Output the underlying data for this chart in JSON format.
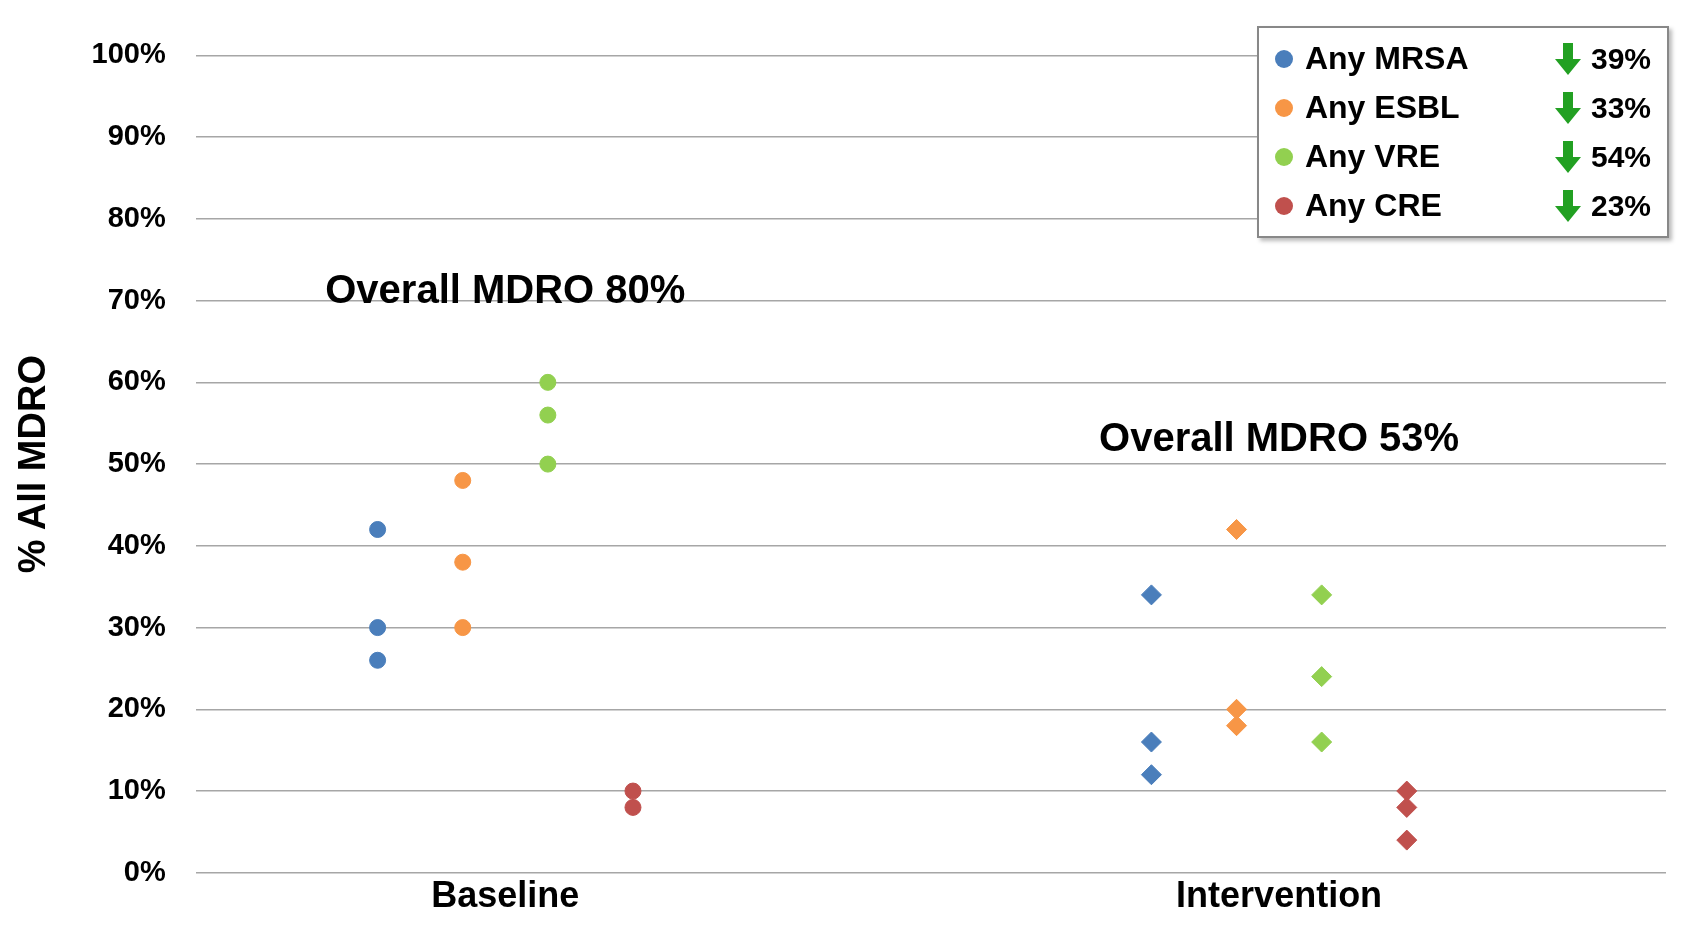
{
  "chart_data": {
    "type": "scatter",
    "ylabel": "% All MDRO",
    "categories": [
      "Baseline",
      "Intervention"
    ],
    "ylim": [
      0,
      100
    ],
    "yticks": [
      {
        "value": 0,
        "label": "0%"
      },
      {
        "value": 10,
        "label": "10%"
      },
      {
        "value": 20,
        "label": "20%"
      },
      {
        "value": 30,
        "label": "30%"
      },
      {
        "value": 40,
        "label": "40%"
      },
      {
        "value": 50,
        "label": "50%"
      },
      {
        "value": 60,
        "label": "60%"
      },
      {
        "value": 70,
        "label": "70%"
      },
      {
        "value": 80,
        "label": "80%"
      },
      {
        "value": 90,
        "label": "90%"
      },
      {
        "value": 100,
        "label": "100%"
      }
    ],
    "grid": "y",
    "legend": "top right",
    "marker": "circle",
    "series": [
      {
        "name": "Any MRSA",
        "color": "#4a7ebb",
        "x": [
          "Baseline",
          "Baseline",
          "Baseline"
        ],
        "values": [
          42,
          30,
          26
        ]
      },
      {
        "name": "Any ESBL",
        "color": "#f79646",
        "x": [
          "Baseline",
          "Baseline",
          "Baseline"
        ],
        "values": [
          48,
          38,
          30
        ]
      },
      {
        "name": "Any VRE",
        "color": "#92d050",
        "x": [
          "Baseline",
          "Baseline",
          "Baseline"
        ],
        "values": [
          60,
          56,
          50
        ]
      },
      {
        "name": "Any CRE",
        "color": "#c0504d",
        "x": [
          "Baseline",
          "Baseline"
        ],
        "values": [
          10,
          8
        ]
      },
      {
        "color": "#4a7ebb",
        "marker": "diamond",
        "x": [
          "Intervention",
          "Intervention",
          "Intervention"
        ],
        "values": [
          34,
          16,
          12
        ]
      },
      {
        "color": "#f79646",
        "marker": "diamond",
        "x": [
          "Intervention",
          "Intervention",
          "Intervention"
        ],
        "values": [
          42,
          20,
          18
        ]
      },
      {
        "color": "#92d050",
        "marker": "diamond",
        "x": [
          "Intervention",
          "Intervention",
          "Intervention"
        ],
        "values": [
          34,
          24,
          16
        ]
      },
      {
        "color": "#c0504d",
        "marker": "diamond",
        "x": [
          "Intervention",
          "Intervention",
          "Intervention"
        ],
        "values": [
          10,
          8,
          4
        ]
      }
    ],
    "annotations": [
      "Overall MDRO 80%",
      "Overall MDRO 53%",
      "39%",
      "33%",
      "54%",
      "23%"
    ]
  }
}
